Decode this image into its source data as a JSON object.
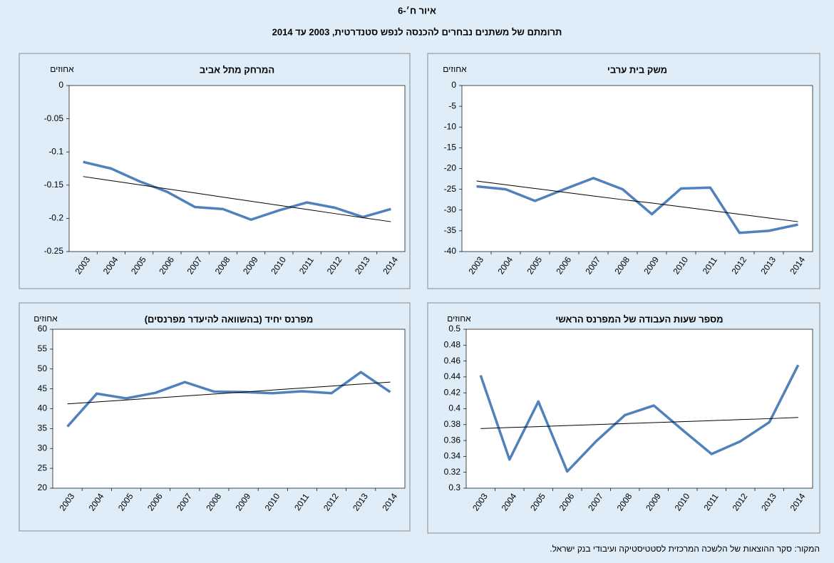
{
  "header": {
    "title": "איור ח׳-6",
    "subtitle": "תרומתם של משתנים נבחרים להכנסה לנפש סטנדרטית, 2003 עד 2014"
  },
  "source": "המקור: סקר ההוצאות של הלשכה המרכזית לסטטיסטיקה ועיבודי בנק ישראל.",
  "chart_data": [
    {
      "type": "line",
      "title": "המרחק מתל אביב",
      "y_label": "אחוזים",
      "categories": [
        "2003",
        "2004",
        "2005",
        "2006",
        "2007",
        "2008",
        "2009",
        "2010",
        "2011",
        "2012",
        "2013",
        "2014"
      ],
      "series": [
        {
          "color": "#4f81bd",
          "values": [
            -0.115,
            -0.125,
            -0.144,
            -0.16,
            -0.183,
            -0.186,
            -0.202,
            -0.188,
            -0.176,
            -0.184,
            -0.198,
            -0.186
          ]
        },
        {
          "color": "#000000",
          "values": [
            -0.137,
            -0.1432,
            -0.1494,
            -0.1556,
            -0.1618,
            -0.168,
            -0.1742,
            -0.1804,
            -0.1866,
            -0.1928,
            -0.199,
            -0.205
          ]
        }
      ],
      "ylim": [
        -0.25,
        0
      ],
      "yticks": [
        0,
        -0.05,
        -0.1,
        -0.15,
        -0.2,
        -0.25
      ]
    },
    {
      "type": "line",
      "title": "משק בית ערבי",
      "y_label": "אחוזים",
      "categories": [
        "2003",
        "2004",
        "2005",
        "2006",
        "2007",
        "2008",
        "2009",
        "2010",
        "2011",
        "2012",
        "2013",
        "2014"
      ],
      "series": [
        {
          "color": "#4f81bd",
          "values": [
            -24.3,
            -25,
            -27.8,
            -25,
            -22.3,
            -25,
            -31,
            -24.8,
            -24.6,
            -35.5,
            -35,
            -33.5
          ]
        },
        {
          "color": "#000000",
          "values": [
            -23,
            -23.9,
            -24.8,
            -25.7,
            -26.6,
            -27.5,
            -28.3,
            -29.2,
            -30.1,
            -31,
            -31.9,
            -32.8
          ]
        }
      ],
      "ylim": [
        -40,
        0
      ],
      "yticks": [
        0,
        -5,
        -10,
        -15,
        -20,
        -25,
        -30,
        -35,
        -40
      ]
    },
    {
      "type": "line",
      "title": "מפרנס יחיד (בהשוואה להיעדר מפרנסים)",
      "y_label": "אחוזים",
      "categories": [
        "2003",
        "2004",
        "2005",
        "2006",
        "2007",
        "2008",
        "2009",
        "2010",
        "2011",
        "2012",
        "2013",
        "2014"
      ],
      "series": [
        {
          "color": "#4f81bd",
          "values": [
            35.5,
            43.8,
            42.6,
            44,
            46.7,
            44.3,
            44.2,
            43.9,
            44.4,
            43.9,
            49.2,
            44.2
          ]
        },
        {
          "color": "#000000",
          "values": [
            41.2,
            41.7,
            42.2,
            42.7,
            43.2,
            43.7,
            44.2,
            44.7,
            45.2,
            45.7,
            46.2,
            46.7
          ]
        }
      ],
      "ylim": [
        20,
        60
      ],
      "yticks": [
        20,
        25,
        30,
        35,
        40,
        45,
        50,
        55,
        60
      ]
    },
    {
      "type": "line",
      "title": "מספר שעות העבודה של המפרנס הראשי",
      "y_label": "אחוזים",
      "categories": [
        "2003",
        "2004",
        "2005",
        "2006",
        "2007",
        "2008",
        "2009",
        "2010",
        "2011",
        "2012",
        "2013",
        "2014"
      ],
      "series": [
        {
          "color": "#4f81bd",
          "values": [
            0.442,
            0.336,
            0.409,
            0.321,
            0.359,
            0.392,
            0.404,
            0.373,
            0.343,
            0.359,
            0.383,
            0.455
          ]
        },
        {
          "color": "#000000",
          "values": [
            0.375,
            0.3763,
            0.3775,
            0.3788,
            0.38,
            0.3813,
            0.3825,
            0.3838,
            0.385,
            0.3863,
            0.3875,
            0.389
          ]
        }
      ],
      "ylim": [
        0.3,
        0.5
      ],
      "yticks": [
        0.3,
        0.32,
        0.34,
        0.36,
        0.38,
        0.4,
        0.42,
        0.44,
        0.46,
        0.48,
        0.5
      ]
    }
  ]
}
